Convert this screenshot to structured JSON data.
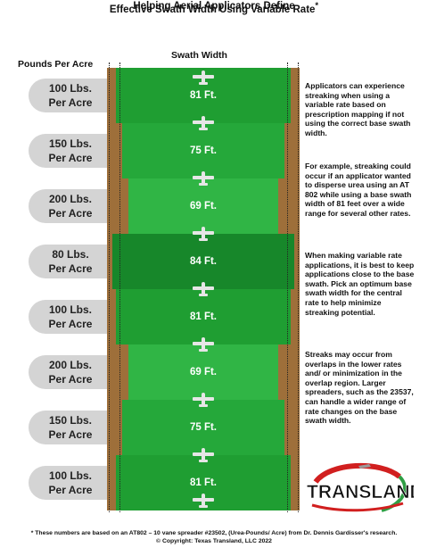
{
  "title_line1": "Helping Aerial Applicators Define",
  "title_line2": "Effective Swath Width Using Variable Rate",
  "title_mark": "*",
  "pounds_header": "Pounds Per Acre",
  "swath_header": "Swath Width",
  "rows": [
    {
      "rate_line1": "100 Lbs.",
      "rate_line2": "Per Acre",
      "swath": "81 Ft.",
      "swath_ft": 81,
      "color": "#1f9e32"
    },
    {
      "rate_line1": "150 Lbs.",
      "rate_line2": "Per Acre",
      "swath": "75 Ft.",
      "swath_ft": 75,
      "color": "#25a83a"
    },
    {
      "rate_line1": "200 Lbs.",
      "rate_line2": "Per Acre",
      "swath": "69 Ft.",
      "swath_ft": 69,
      "color": "#30b545"
    },
    {
      "rate_line1": "80 Lbs.",
      "rate_line2": "Per Acre",
      "swath": "84 Ft.",
      "swath_ft": 84,
      "color": "#17872a"
    },
    {
      "rate_line1": "100 Lbs.",
      "rate_line2": "Per Acre",
      "swath": "81 Ft.",
      "swath_ft": 81,
      "color": "#1f9e32"
    },
    {
      "rate_line1": "200 Lbs.",
      "rate_line2": "Per Acre",
      "swath": "69 Ft.",
      "swath_ft": 69,
      "color": "#30b545"
    },
    {
      "rate_line1": "150 Lbs.",
      "rate_line2": "Per Acre",
      "swath": "75 Ft.",
      "swath_ft": 75,
      "color": "#25a83a"
    },
    {
      "rate_line1": "100 Lbs.",
      "rate_line2": "Per Acre",
      "swath": "81 Ft.",
      "swath_ft": 81,
      "color": "#1f9e32"
    }
  ],
  "notes": [
    "Applicators can experience streaking when using a variable rate based on prescription mapping if not using the correct base swath width.",
    "For example, streaking could occur if an applicator wanted to disperse urea using an AT 802 while using a base swath width of 81 feet over a wide range for several other rates.",
    "When making variable rate applications, it is best to keep applications close to the base swath. Pick an optimum base swath width for the central rate to help minimize streaking potential.",
    "Streaks may occur from overlaps in the lower rates and/ or minimization in the overlap region. Larger spreaders, such as the 23537, can handle a wider range of rate changes on the base swath width."
  ],
  "logo_text": "TRANSLAND",
  "footnote": "* These numbers are based on an AT802 – 10 vane spreader #23502, (Urea-Pounds/ Acre) from Dr. Dennis Gardisser's research.",
  "copyright": "© Copyright: Texas Transland, LLC 2022",
  "colors": {
    "soil": "#9e6f3a",
    "plane": "#e6e6e6",
    "pill": "#d4d4d4",
    "logo_red": "#d11f1f",
    "logo_green": "#2f9e44"
  }
}
